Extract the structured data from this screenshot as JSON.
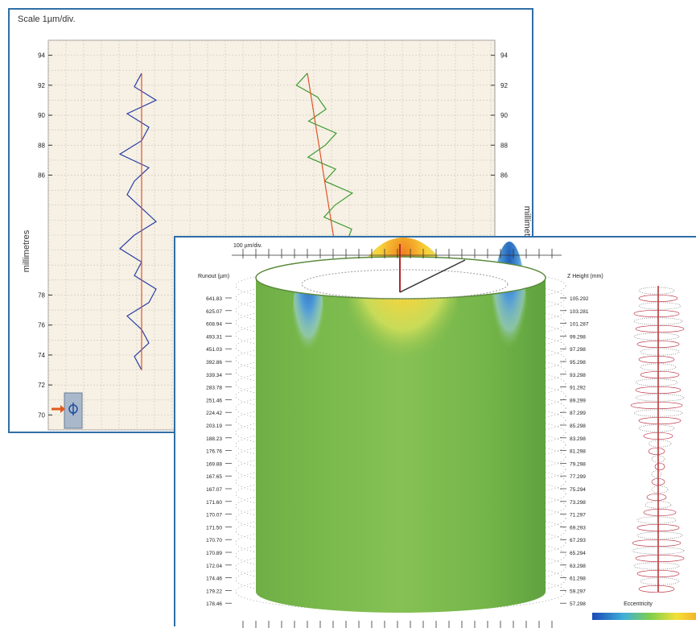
{
  "back_panel": {
    "title": "Scale 1µm/div.",
    "ylabel": "millimetres",
    "y_ticks": [
      "94",
      "92",
      "90",
      "88",
      "86",
      "78",
      "76",
      "74",
      "72",
      "70"
    ],
    "y_ticks_right": [
      "94",
      "92",
      "90",
      "88",
      "86"
    ],
    "ylabel_right": "millimetres"
  },
  "front_panel": {
    "top_scale_label": "100 µm/div.",
    "runout_label": "Runout (µm)",
    "z_label": "Z Height (mm)",
    "runout_values": [
      "641.83",
      "625.07",
      "608.94",
      "493.31",
      "451.03",
      "392.86",
      "339.34",
      "283.78",
      "251.46",
      "224.42",
      "203.19",
      "188.23",
      "176.76",
      "169.88",
      "167.65",
      "167.07",
      "171.60",
      "170.07",
      "171.50",
      "170.70",
      "170.89",
      "172.04",
      "174.46",
      "179.22",
      "178.46"
    ],
    "z_values": [
      "105.292",
      "103.281",
      "101.287",
      "99.298",
      "97.298",
      "95.298",
      "93.298",
      "91.292",
      "89.299",
      "87.299",
      "85.298",
      "83.298",
      "81.298",
      "79.298",
      "77.299",
      "75.294",
      "73.298",
      "71.297",
      "69.293",
      "67.293",
      "65.294",
      "63.298",
      "61.298",
      "59.297",
      "57.298"
    ],
    "eccentricity_label": "Eccentricity"
  },
  "chart_data": [
    {
      "type": "line",
      "title": "Scale 1µm/div.",
      "ylabel": "millimetres",
      "ylim": [
        69,
        95
      ],
      "grid": true,
      "series": [
        {
          "x": [
            0,
            -1,
            1,
            0,
            -2,
            1,
            2,
            -1,
            0,
            -3,
            -1,
            2,
            0,
            -2,
            -1,
            1,
            -3,
            0,
            1,
            -2,
            2,
            -1,
            0,
            -3,
            1,
            0,
            -1,
            2,
            -2,
            0,
            1
          ],
          "y": [
            73,
            73.9,
            74.8,
            75.7,
            76.6,
            77.5,
            78.4,
            79.3,
            80.2,
            81.1,
            82,
            82.9,
            83.8,
            84.7,
            85.6,
            86.5,
            87.4,
            88.3,
            89.2,
            90.1,
            91,
            91.9,
            92.8,
            73.4,
            76,
            79,
            82,
            85,
            88,
            91,
            92.6
          ]
        },
        {
          "x": [
            0,
            -2,
            1,
            2,
            -1,
            3,
            1,
            -2,
            2,
            0,
            4,
            1,
            -1,
            3,
            2,
            5,
            1,
            3,
            2,
            6,
            3,
            2,
            5,
            4
          ],
          "y": [
            92.8,
            92,
            91.2,
            90.4,
            89.6,
            88.8,
            88,
            87.2,
            86.4,
            85.6,
            84.8,
            84,
            83.2,
            82.4,
            81.6,
            80.8,
            80,
            79.2,
            78.4,
            77.6,
            76.8,
            76,
            75.2,
            74.4
          ]
        }
      ]
    },
    {
      "type": "area",
      "ylabel": "Runout (µm)",
      "y2label": "Z Height (mm)",
      "legend": "bottom-right",
      "series": [
        {
          "name": "Runout (µm)",
          "values": [
            641.83,
            625.07,
            608.94,
            493.31,
            451.03,
            392.86,
            339.34,
            283.78,
            251.46,
            224.42,
            203.19,
            188.23,
            176.76,
            169.88,
            167.65,
            167.07,
            171.6,
            170.07,
            171.5,
            170.7,
            170.89,
            172.04,
            174.46,
            179.22,
            178.46
          ]
        },
        {
          "name": "Z Height (mm)",
          "values": [
            105.292,
            103.281,
            101.287,
            99.298,
            97.298,
            95.298,
            93.298,
            91.292,
            89.299,
            87.299,
            85.298,
            83.298,
            81.298,
            79.298,
            77.299,
            75.294,
            73.298,
            71.297,
            69.293,
            67.293,
            65.294,
            63.298,
            61.298,
            59.297,
            57.298
          ]
        }
      ]
    }
  ]
}
